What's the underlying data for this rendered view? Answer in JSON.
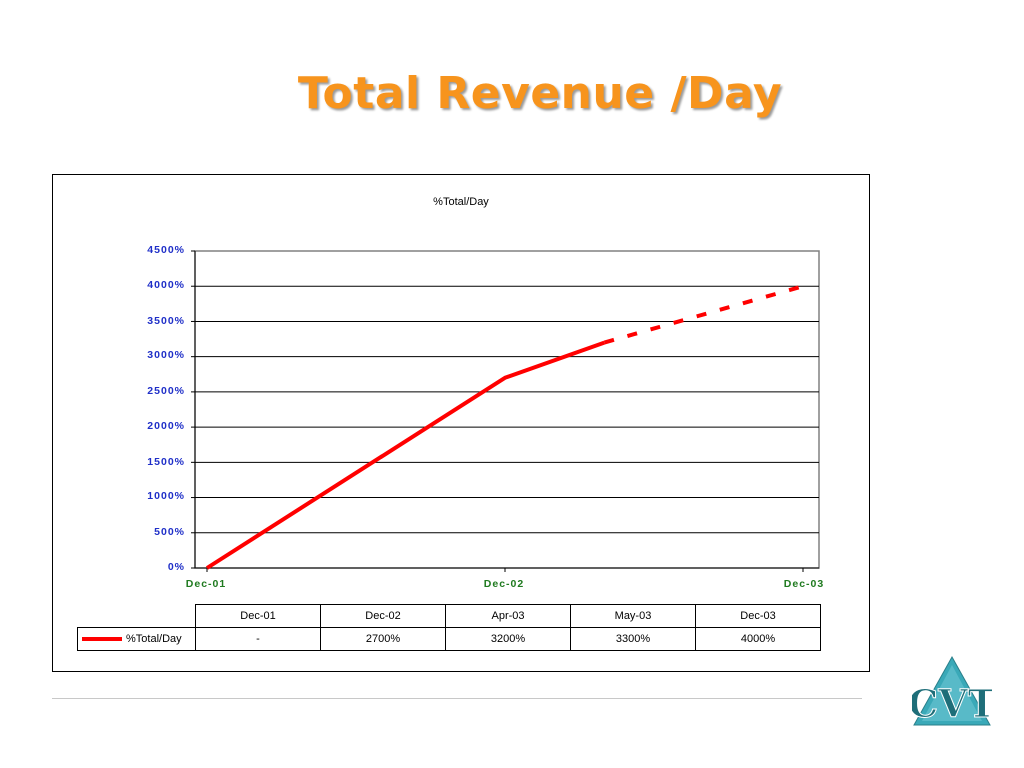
{
  "slide": {
    "title": "Total Revenue /Day"
  },
  "chart_data": {
    "type": "line",
    "title": "%Total/Day",
    "y_ticks": [
      "4500%",
      "4000%",
      "3500%",
      "3000%",
      "2500%",
      "2000%",
      "1500%",
      "1000%",
      "500%",
      "0%"
    ],
    "x_ticks": [
      "Dec-01",
      "Dec-02",
      "Dec-03"
    ],
    "ylim": [
      0,
      4500
    ],
    "series": [
      {
        "name": "%Total/Day",
        "color": "#ff0000",
        "points": [
          {
            "x": "Dec-01",
            "y": 0
          },
          {
            "x": "Dec-02",
            "y": 2700
          },
          {
            "x": "Apr-03",
            "y": 3200
          },
          {
            "x": "May-03",
            "y": 3300
          },
          {
            "x": "Dec-03",
            "y": 4000
          }
        ],
        "solid_through": "Apr-03",
        "dashed_from": "Apr-03"
      }
    ],
    "table": {
      "columns": [
        "Dec-01",
        "Dec-02",
        "Apr-03",
        "May-03",
        "Dec-03"
      ],
      "row_label": "%Total/Day",
      "values": [
        "-",
        "2700%",
        "3200%",
        "3300%",
        "4000%"
      ]
    },
    "grid": true,
    "legend": "in-table"
  },
  "logo": {
    "text": "CVT",
    "color": "#3aa9b8"
  }
}
